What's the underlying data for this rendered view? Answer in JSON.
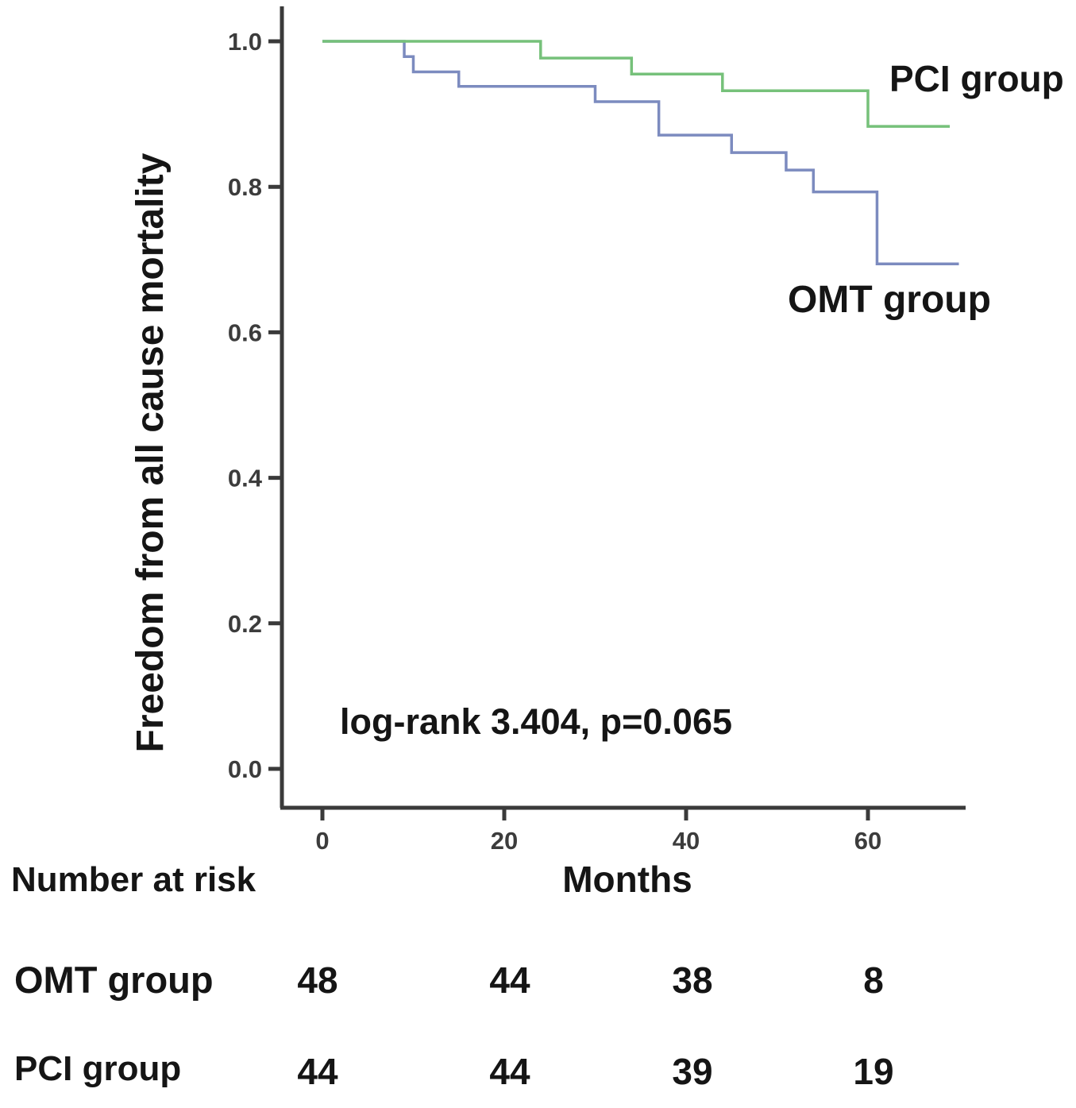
{
  "chart_data": {
    "type": "line",
    "subtype": "kaplan_meier_step_curves",
    "title": "",
    "xlabel": "Months",
    "ylabel": "Freedom from all cause mortality",
    "xticks": [
      0,
      20,
      40,
      60
    ],
    "yticks": [
      0.0,
      0.2,
      0.4,
      0.6,
      0.8,
      1.0
    ],
    "xlim": [
      0,
      70
    ],
    "ylim": [
      0.0,
      1.0
    ],
    "grid": false,
    "legend_position": "inline-curve-labels",
    "annotation": "log-rank 3.404, p=0.065",
    "axis_color": "#3a3a3a",
    "tick_label_color": "#3c3c3c",
    "series": [
      {
        "name": "OMT group",
        "color": "#7c8bbf",
        "steps": [
          [
            0,
            1.0
          ],
          [
            9,
            0.979
          ],
          [
            10,
            0.958
          ],
          [
            15,
            0.938
          ],
          [
            30,
            0.917
          ],
          [
            37,
            0.871
          ],
          [
            45,
            0.847
          ],
          [
            51,
            0.823
          ],
          [
            54,
            0.793
          ],
          [
            61,
            0.694
          ],
          [
            70,
            0.694
          ]
        ]
      },
      {
        "name": "PCI group",
        "color": "#76c17a",
        "steps": [
          [
            0,
            1.0
          ],
          [
            24,
            0.977
          ],
          [
            34,
            0.955
          ],
          [
            44,
            0.932
          ],
          [
            60,
            0.883
          ],
          [
            69,
            0.883
          ]
        ]
      }
    ]
  },
  "risk_table": {
    "title": "Number at risk",
    "columns_months": [
      0,
      20,
      40,
      60
    ],
    "rows": [
      {
        "label": "OMT group",
        "values": [
          "48",
          "44",
          "38",
          "8"
        ]
      },
      {
        "label": "PCI group",
        "values": [
          "44",
          "44",
          "39",
          "19"
        ]
      }
    ]
  }
}
